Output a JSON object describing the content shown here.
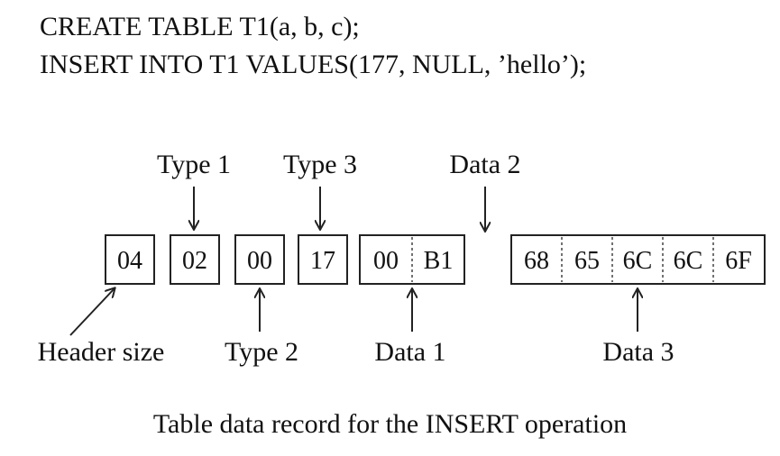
{
  "code": {
    "line1": "CREATE TABLE T1(a, b, c);",
    "line2": "INSERT INTO T1 VALUES(177, NULL, ’hello’);"
  },
  "labels": {
    "type1": "Type 1",
    "type3": "Type 3",
    "data2": "Data 2",
    "header_size": "Header size",
    "type2": "Type 2",
    "data1": "Data 1",
    "data3": "Data 3"
  },
  "bytes": {
    "header_size": "04",
    "type1": "02",
    "type2": "00",
    "type3": "17",
    "data1": [
      "00",
      "B1"
    ],
    "data3": [
      "68",
      "65",
      "6C",
      "6C",
      "6F"
    ]
  },
  "caption": "Table data record for the INSERT operation"
}
